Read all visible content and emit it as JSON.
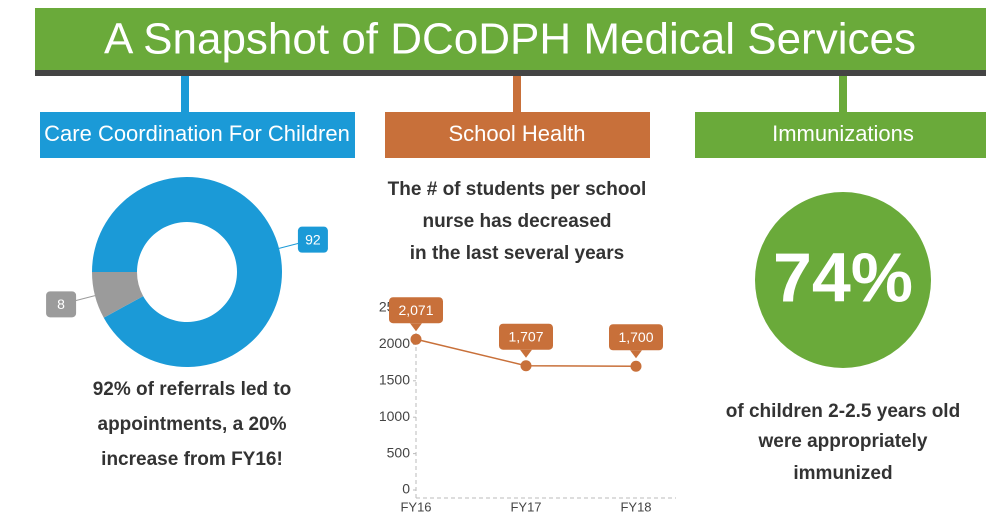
{
  "title": "A Snapshot of DCoDPH Medical Services",
  "panels": [
    {
      "heading": "Care Coordination For Children",
      "caption": [
        "92% of referrals led to",
        "appointments, a 20%",
        "increase from FY16!"
      ]
    },
    {
      "heading": "School Health"
    },
    {
      "heading": "Immunizations",
      "stat": "74%",
      "caption": [
        "of children 2-2.5 years old",
        "were appropriately",
        "immunized"
      ]
    }
  ],
  "chart_data": [
    {
      "type": "pie",
      "donut": true,
      "values": [
        92,
        8
      ],
      "colors": [
        "#1b9ad7",
        "#9b9b9b"
      ]
    },
    {
      "type": "line",
      "title": [
        "The # of students per school",
        "nurse has decreased",
        "in the last several years"
      ],
      "categories": [
        "FY16",
        "FY17",
        "FY18"
      ],
      "values": [
        2071,
        1707,
        1700
      ],
      "value_labels": [
        "2,071",
        "1,707",
        "1,700"
      ],
      "color": "#c8703a",
      "ylim": [
        0,
        2500
      ],
      "yticks": [
        0,
        500,
        1000,
        1500,
        2000,
        2500
      ],
      "grid": false
    }
  ]
}
